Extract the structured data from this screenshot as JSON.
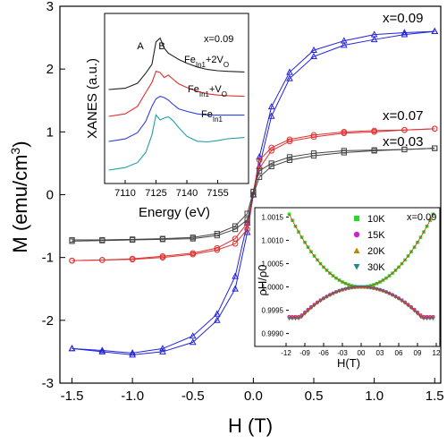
{
  "chart_data": [
    {
      "type": "line",
      "xlabel": "H (T)",
      "ylabel": "M (emu/cm3)",
      "xlim": [
        -1.6,
        1.55
      ],
      "ylim": [
        -3,
        3
      ],
      "xticks": [
        "-1.5",
        "-1.0",
        "-0.5",
        "0.0",
        "0.5",
        "1.0",
        "1.5"
      ],
      "yticks": [
        "-3",
        "-2",
        "-1",
        "0",
        "1",
        "2",
        "3"
      ],
      "grid": false,
      "series": [
        {
          "name": "x=0.09",
          "color": "#2222dd",
          "marker": "triangle",
          "Ms": 2.6,
          "x": [
            -1.5,
            -1.25,
            -1.0,
            -0.75,
            -0.5,
            -0.3,
            -0.15,
            -0.05,
            0.0,
            0.05,
            0.15,
            0.3,
            0.5,
            0.75,
            1.0,
            1.25,
            1.5
          ],
          "y_up": [
            -2.45,
            -2.48,
            -2.52,
            -2.45,
            -2.25,
            -1.9,
            -1.3,
            -0.45,
            0.0,
            0.6,
            1.4,
            1.95,
            2.3,
            2.45,
            2.55,
            2.58,
            2.6
          ],
          "y_down": [
            -2.45,
            -2.5,
            -2.55,
            -2.5,
            -2.35,
            -2.0,
            -1.5,
            -0.6,
            0.0,
            0.45,
            1.25,
            1.85,
            2.2,
            2.38,
            2.47,
            2.55,
            2.6
          ]
        },
        {
          "name": "x=0.07",
          "color": "#e03030",
          "marker": "circle",
          "Ms": 1.05,
          "x": [
            -1.5,
            -1.25,
            -1.0,
            -0.75,
            -0.5,
            -0.3,
            -0.15,
            -0.05,
            0.0,
            0.05,
            0.15,
            0.3,
            0.5,
            0.75,
            1.0,
            1.25,
            1.5
          ],
          "y_up": [
            -1.05,
            -1.04,
            -1.02,
            -0.98,
            -0.93,
            -0.85,
            -0.7,
            -0.45,
            0.05,
            0.55,
            0.75,
            0.88,
            0.95,
            1.0,
            1.02,
            1.03,
            1.05
          ],
          "y_down": [
            -1.05,
            -1.04,
            -1.03,
            -1.0,
            -0.95,
            -0.88,
            -0.78,
            -0.55,
            0.0,
            0.42,
            0.7,
            0.85,
            0.92,
            0.98,
            1.0,
            1.03,
            1.05
          ]
        },
        {
          "name": "x=0.03",
          "color": "#444444",
          "marker": "square",
          "Ms": 0.75,
          "x": [
            -1.5,
            -1.25,
            -1.0,
            -0.75,
            -0.5,
            -0.3,
            -0.15,
            -0.05,
            0.0,
            0.05,
            0.15,
            0.3,
            0.5,
            0.75,
            1.0,
            1.25,
            1.5
          ],
          "y_up": [
            -0.72,
            -0.72,
            -0.71,
            -0.7,
            -0.68,
            -0.62,
            -0.5,
            -0.3,
            0.05,
            0.38,
            0.5,
            0.6,
            0.66,
            0.7,
            0.71,
            0.72,
            0.74
          ],
          "y_down": [
            -0.74,
            -0.73,
            -0.72,
            -0.71,
            -0.7,
            -0.65,
            -0.55,
            -0.4,
            0.0,
            0.28,
            0.45,
            0.55,
            0.62,
            0.67,
            0.7,
            0.72,
            0.74
          ]
        }
      ],
      "annotations": [
        "x=0.09",
        "x=0.07",
        "x=0.03"
      ]
    },
    {
      "type": "line",
      "name": "xanes-inset",
      "xlabel": "Energy (eV)",
      "ylabel": "XANES (a.u.)",
      "xlim": [
        7100,
        7170
      ],
      "xticks": [
        "7110",
        "7125",
        "7140",
        "7155"
      ],
      "peak_labels": [
        "A",
        "B"
      ],
      "series": [
        {
          "name": "x=0.09",
          "color": "#20a0a0",
          "x": [
            7102,
            7110,
            7116,
            7120,
            7123,
            7125,
            7127,
            7129,
            7131,
            7133,
            7136,
            7140,
            7145,
            7150,
            7155,
            7160,
            7168
          ],
          "y": [
            0.1,
            0.14,
            0.22,
            0.38,
            0.66,
            0.98,
            0.9,
            0.93,
            0.95,
            0.9,
            0.78,
            0.64,
            0.56,
            0.55,
            0.57,
            0.6,
            0.62
          ]
        },
        {
          "name": "Fe_In1 + 2V_O",
          "color": "#3040e0",
          "x": [
            7102,
            7110,
            7116,
            7120,
            7123,
            7125,
            7127,
            7129,
            7131,
            7133,
            7136,
            7140,
            7145,
            7150,
            7155,
            7160,
            7168
          ],
          "y": [
            0.1,
            0.14,
            0.24,
            0.42,
            0.66,
            0.78,
            0.82,
            0.8,
            0.76,
            0.7,
            0.62,
            0.58,
            0.54,
            0.52,
            0.52,
            0.52,
            0.52
          ]
        },
        {
          "name": "Fe_In1 + V_O",
          "color": "#e03030",
          "x": [
            7102,
            7110,
            7116,
            7120,
            7123,
            7125,
            7127,
            7129,
            7131,
            7133,
            7136,
            7140,
            7145,
            7150,
            7155,
            7160,
            7168
          ],
          "y": [
            0.1,
            0.14,
            0.26,
            0.48,
            0.64,
            0.82,
            0.8,
            0.72,
            0.76,
            0.7,
            0.62,
            0.56,
            0.5,
            0.46,
            0.44,
            0.43,
            0.42
          ]
        },
        {
          "name": "Fe_In1",
          "color": "#222222",
          "x": [
            7102,
            7110,
            7116,
            7120,
            7123,
            7125,
            7127,
            7129,
            7131,
            7133,
            7136,
            7140,
            7145,
            7150,
            7155,
            7160,
            7168
          ],
          "y": [
            0.1,
            0.12,
            0.2,
            0.36,
            0.5,
            0.86,
            0.92,
            0.76,
            0.68,
            0.64,
            0.58,
            0.52,
            0.46,
            0.42,
            0.4,
            0.39,
            0.38
          ]
        }
      ],
      "labels": {
        "top": "x=0.09",
        "l2_main": "Fe",
        "l2_sub": "In1",
        "l2_rest": "+2V",
        "l2_o": "O",
        "l3_main": "Fe",
        "l3_sub": "In1",
        "l3_rest": "+V",
        "l3_o": "O",
        "l4_main": "Fe",
        "l4_sub": "In1"
      }
    },
    {
      "type": "scatter",
      "name": "magnetoresistance-inset",
      "xlabel": "H(T)",
      "ylabel": "ρH/ρ0",
      "xlim": [
        -12,
        12
      ],
      "ylim": [
        0.9988,
        1.0017
      ],
      "xticks": [
        "-12",
        "-09",
        "-06",
        "-03",
        "00",
        "03",
        "06",
        "09",
        "12"
      ],
      "yticks": [
        "1.0015",
        "1.0010",
        "1.0005",
        "1.0000",
        "0.9995",
        "0.9990"
      ],
      "annotation": "x=0.09",
      "series": [
        {
          "name": "10K",
          "color": "#22dd22",
          "marker": "square"
        },
        {
          "name": "15K",
          "color": "#cc22cc",
          "marker": "circle"
        },
        {
          "name": "20K",
          "color": "#bb8800",
          "marker": "triangle-up"
        },
        {
          "name": "30K",
          "color": "#228888",
          "marker": "triangle-down"
        }
      ]
    }
  ]
}
